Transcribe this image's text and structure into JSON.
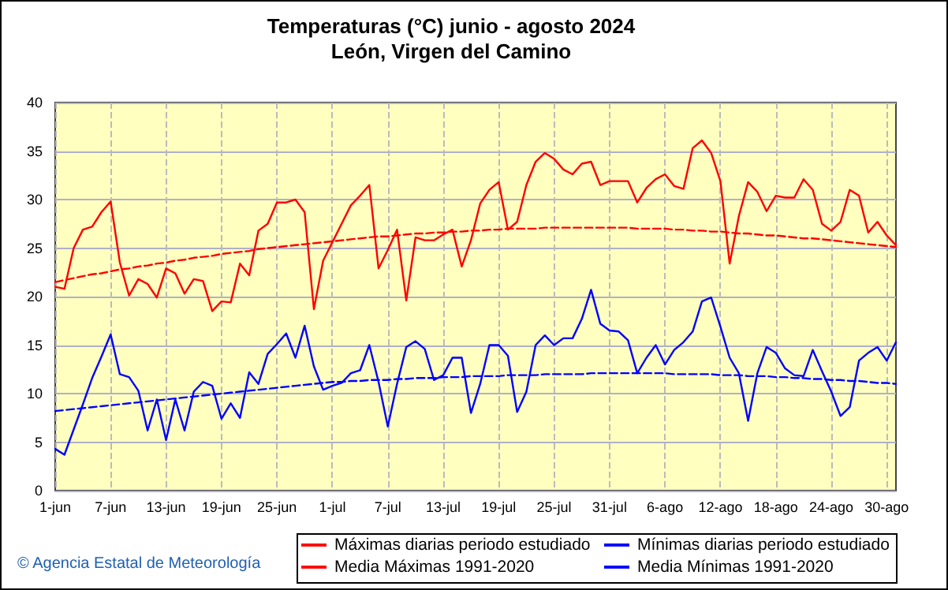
{
  "chart_data": {
    "type": "line",
    "title": "Temperaturas (°C) junio - agosto 2024",
    "subtitle": "León, Virgen del Camino",
    "annotations": [
      "© Agencia Estatal de Meteorología"
    ],
    "categories": [
      "1-jun",
      null,
      null,
      null,
      null,
      null,
      "7-jun",
      null,
      null,
      null,
      null,
      null,
      "13-jun",
      null,
      null,
      null,
      null,
      null,
      "19-jun",
      null,
      null,
      null,
      null,
      null,
      "25-jun",
      null,
      null,
      null,
      null,
      null,
      "1-jul",
      null,
      null,
      null,
      null,
      null,
      "7-jul",
      null,
      null,
      null,
      null,
      null,
      "13-jul",
      null,
      null,
      null,
      null,
      null,
      "19-jul",
      null,
      null,
      null,
      null,
      null,
      "25-jul",
      null,
      null,
      null,
      null,
      null,
      "31-jul",
      null,
      null,
      null,
      null,
      null,
      "6-ago",
      null,
      null,
      null,
      null,
      null,
      "12-ago",
      null,
      null,
      null,
      null,
      null,
      "18-ago",
      null,
      null,
      null,
      null,
      null,
      "24-ago",
      null,
      null,
      null,
      null,
      null,
      "30-ago",
      null
    ],
    "series": [
      {
        "name": "Máximas diarias periodo estudiado",
        "color": "#ff0000",
        "line_style": "solid",
        "values": [
          21.0,
          20.8,
          25.0,
          26.9,
          27.2,
          28.7,
          29.8,
          23.5,
          20.1,
          21.8,
          21.3,
          19.9,
          22.9,
          22.4,
          20.3,
          21.8,
          21.6,
          18.5,
          19.5,
          19.4,
          23.4,
          22.2,
          26.8,
          27.5,
          29.7,
          29.7,
          30.0,
          28.7,
          18.7,
          23.7,
          25.6,
          27.5,
          29.4,
          30.4,
          31.5,
          22.9,
          24.8,
          26.9,
          19.6,
          26.1,
          25.8,
          25.8,
          26.4,
          26.9,
          23.1,
          25.8,
          29.6,
          31.0,
          31.8,
          26.9,
          27.7,
          31.5,
          33.9,
          34.8,
          34.2,
          33.1,
          32.6,
          33.7,
          33.9,
          31.5,
          31.9,
          31.9,
          31.9,
          29.7,
          31.2,
          32.1,
          32.6,
          31.4,
          31.1,
          35.3,
          36.1,
          34.8,
          31.9,
          23.4,
          28.3,
          31.8,
          30.8,
          28.8,
          30.4,
          30.2,
          30.2,
          32.1,
          31.0,
          27.5,
          26.8,
          27.7,
          31.0,
          30.4,
          26.6,
          27.7,
          26.3,
          25.3
        ]
      },
      {
        "name": "Mínimas diarias periodo estudiado",
        "color": "#0000ff",
        "line_style": "solid",
        "values": [
          4.3,
          3.7,
          6.3,
          8.9,
          11.6,
          13.8,
          16.1,
          12.0,
          11.7,
          10.3,
          6.2,
          9.4,
          5.2,
          9.4,
          6.2,
          10.2,
          11.2,
          10.8,
          7.4,
          9.0,
          7.5,
          12.2,
          11.0,
          14.1,
          15.1,
          16.2,
          13.7,
          17.0,
          12.8,
          10.4,
          10.8,
          11.1,
          12.1,
          12.4,
          15.0,
          11.2,
          6.6,
          11.0,
          14.8,
          15.4,
          14.6,
          11.4,
          11.9,
          13.7,
          13.7,
          8.0,
          11.0,
          15.0,
          15.0,
          13.9,
          8.1,
          10.2,
          15.0,
          16.0,
          15.0,
          15.7,
          15.7,
          17.7,
          20.7,
          17.2,
          16.5,
          16.4,
          15.5,
          12.1,
          13.7,
          15.0,
          13.0,
          14.5,
          15.3,
          16.4,
          19.5,
          19.9,
          16.9,
          13.7,
          12.1,
          7.2,
          12.1,
          14.8,
          14.2,
          12.6,
          11.9,
          11.8,
          14.5,
          12.3,
          10.2,
          7.7,
          8.6,
          13.4,
          14.2,
          14.8,
          13.4,
          15.3
        ]
      },
      {
        "name": "Media Máximas 1991-2020",
        "color": "#ff0000",
        "line_style": "dashed",
        "values": [
          21.5,
          21.7,
          21.9,
          22.1,
          22.3,
          22.4,
          22.6,
          22.8,
          22.9,
          23.1,
          23.2,
          23.4,
          23.5,
          23.7,
          23.8,
          24.0,
          24.1,
          24.2,
          24.4,
          24.5,
          24.6,
          24.7,
          24.9,
          25.0,
          25.1,
          25.2,
          25.3,
          25.4,
          25.5,
          25.6,
          25.7,
          25.8,
          25.9,
          26.0,
          26.1,
          26.2,
          26.2,
          26.3,
          26.4,
          26.5,
          26.5,
          26.6,
          26.6,
          26.7,
          26.7,
          26.8,
          26.8,
          26.9,
          26.9,
          27.0,
          27.0,
          27.0,
          27.0,
          27.1,
          27.1,
          27.1,
          27.1,
          27.1,
          27.1,
          27.1,
          27.1,
          27.1,
          27.1,
          27.0,
          27.0,
          27.0,
          27.0,
          26.9,
          26.9,
          26.8,
          26.8,
          26.7,
          26.7,
          26.6,
          26.5,
          26.5,
          26.4,
          26.3,
          26.3,
          26.2,
          26.1,
          26.0,
          26.0,
          25.9,
          25.8,
          25.7,
          25.6,
          25.5,
          25.4,
          25.3,
          25.2,
          25.1
        ]
      },
      {
        "name": "Media Mínimas 1991-2020",
        "color": "#0000ff",
        "line_style": "dashed",
        "values": [
          8.2,
          8.3,
          8.4,
          8.5,
          8.6,
          8.7,
          8.8,
          8.9,
          9.0,
          9.1,
          9.2,
          9.3,
          9.4,
          9.5,
          9.6,
          9.7,
          9.8,
          9.9,
          10.0,
          10.1,
          10.2,
          10.3,
          10.4,
          10.5,
          10.6,
          10.7,
          10.8,
          10.9,
          11.0,
          11.1,
          11.2,
          11.2,
          11.3,
          11.3,
          11.4,
          11.4,
          11.4,
          11.5,
          11.5,
          11.6,
          11.6,
          11.6,
          11.7,
          11.7,
          11.7,
          11.8,
          11.8,
          11.8,
          11.8,
          11.9,
          11.9,
          11.9,
          11.9,
          12.0,
          12.0,
          12.0,
          12.0,
          12.0,
          12.1,
          12.1,
          12.1,
          12.1,
          12.1,
          12.1,
          12.1,
          12.1,
          12.1,
          12.0,
          12.0,
          12.0,
          12.0,
          12.0,
          11.9,
          11.9,
          11.9,
          11.8,
          11.8,
          11.8,
          11.7,
          11.7,
          11.6,
          11.6,
          11.5,
          11.5,
          11.4,
          11.4,
          11.3,
          11.3,
          11.2,
          11.1,
          11.1,
          11.0
        ]
      }
    ],
    "ylim": [
      0,
      40
    ],
    "yticks": [
      0,
      5,
      10,
      15,
      20,
      25,
      30,
      35,
      40
    ],
    "grid": true,
    "legend": "bottom",
    "marker": "none"
  }
}
